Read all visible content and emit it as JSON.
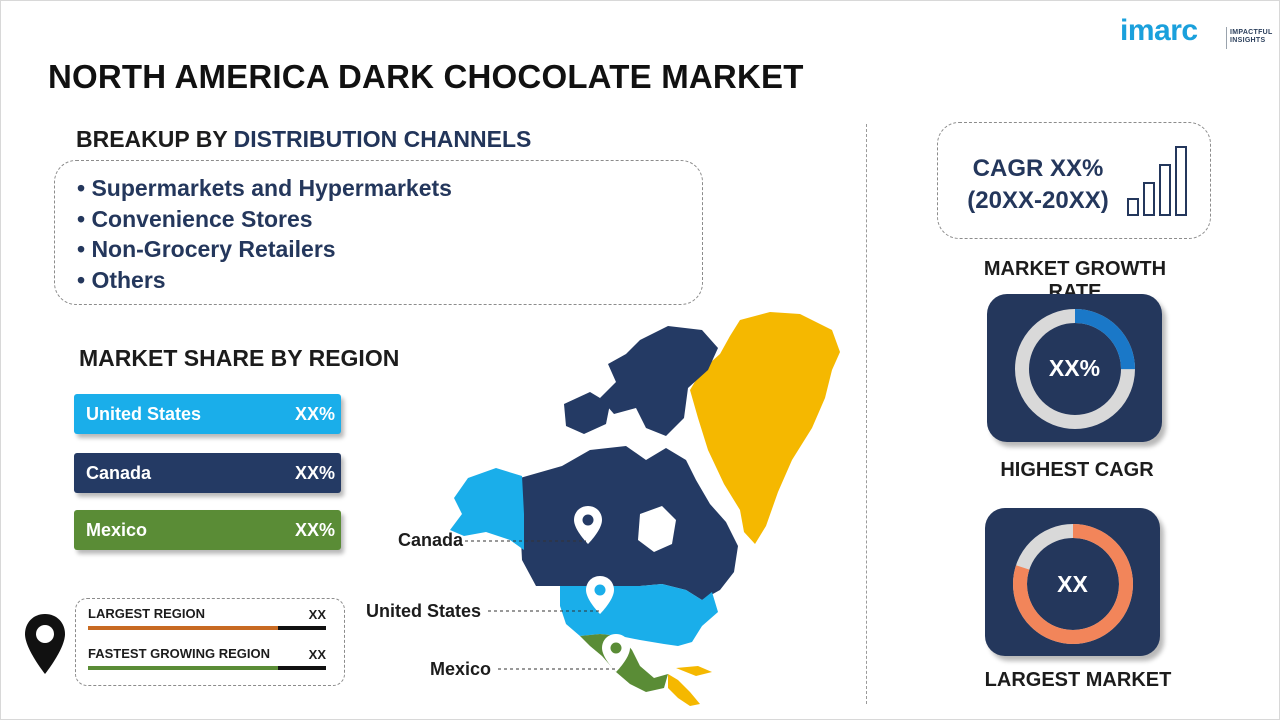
{
  "title": "NORTH AMERICA DARK CHOCOLATE MARKET",
  "logo": {
    "word": "imarc",
    "tagline_line1": "IMPACTFUL",
    "tagline_line2": "INSIGHTS"
  },
  "distribution": {
    "heading_prefix": "BREAKUP BY ",
    "heading_accent": "DISTRIBUTION CHANNELS",
    "items": [
      "• Supermarkets and Hypermarkets",
      "• Convenience Stores",
      "• Non-Grocery Retailers",
      "• Others"
    ]
  },
  "region_share": {
    "heading": "MARKET SHARE BY REGION",
    "bars": [
      {
        "label": "United States",
        "value": "XX%",
        "color": "#1aaeea"
      },
      {
        "label": "Canada",
        "value": "XX%",
        "color": "#243a64"
      },
      {
        "label": "Mexico",
        "value": "XX%",
        "color": "#5a8c36"
      }
    ]
  },
  "legend": {
    "rows": [
      {
        "label": "LARGEST REGION",
        "value": "XX",
        "color": "#c86a22"
      },
      {
        "label": "FASTEST GROWING REGION",
        "value": "XX",
        "color": "#5a8c36"
      }
    ]
  },
  "map": {
    "labels": {
      "canada": "Canada",
      "us": "United States",
      "mexico": "Mexico"
    },
    "colors": {
      "canada": "#243a64",
      "us": "#1aaeea",
      "alaska": "#1aaeea",
      "mexico": "#5a8c36",
      "greenland": "#f5b800",
      "central": "#f5b800"
    }
  },
  "cagr": {
    "line1": "CAGR XX%",
    "line2": "(20XX-20XX)",
    "caption": "MARKET GROWTH RATE"
  },
  "highest_cagr": {
    "value": "XX%",
    "caption": "HIGHEST CAGR",
    "tile_color": "#24375c",
    "ring_fill": "#1a78c8",
    "ring_track": "#d9d9d9",
    "fraction": 0.25
  },
  "largest_market": {
    "value": "XX",
    "caption": "LARGEST MARKET",
    "tile_color": "#24375c",
    "ring_fill": "#f2855a",
    "ring_track": "#d9d9d9",
    "fraction": 0.8
  }
}
